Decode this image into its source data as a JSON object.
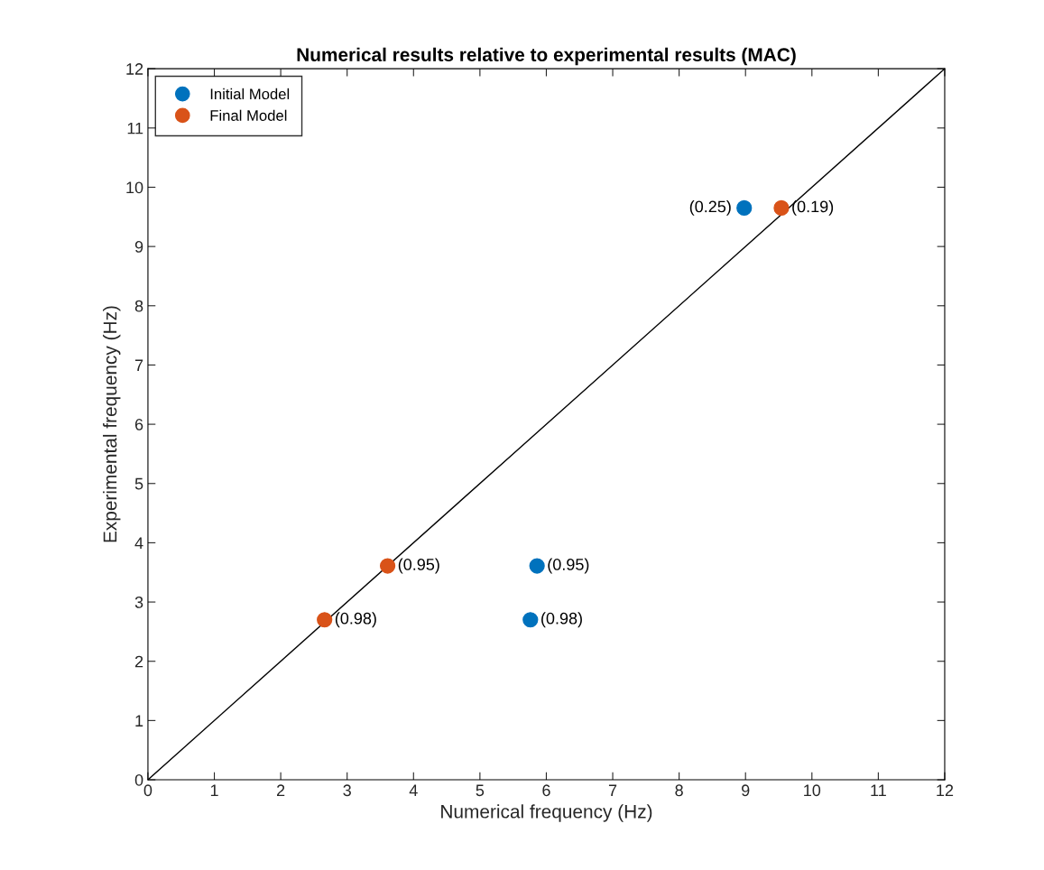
{
  "chart_data": {
    "type": "scatter",
    "title": "Numerical results relative to experimental results (MAC)",
    "xlabel": "Numerical frequency (Hz)",
    "ylabel": "Experimental frequency (Hz)",
    "xlim": [
      0,
      12
    ],
    "ylim": [
      0,
      12
    ],
    "xticks": [
      0,
      1,
      2,
      3,
      4,
      5,
      6,
      7,
      8,
      9,
      10,
      11,
      12
    ],
    "yticks": [
      0,
      1,
      2,
      3,
      4,
      5,
      6,
      7,
      8,
      9,
      10,
      11,
      12
    ],
    "grid": false,
    "legend": "top left",
    "marker": "circle",
    "series": [
      {
        "type": "line",
        "color": "#000000",
        "x": [
          0,
          12
        ],
        "values": [
          0,
          12
        ],
        "marker": "none"
      },
      {
        "name": "Initial Model",
        "color": "#0072bd",
        "x": [
          8.98,
          5.86,
          5.76
        ],
        "values": [
          9.65,
          3.61,
          2.7
        ]
      },
      {
        "name": "Final Model",
        "color": "#d95319",
        "x": [
          9.54,
          3.61,
          2.66
        ],
        "values": [
          9.65,
          3.61,
          2.7
        ]
      }
    ],
    "annotations": [
      {
        "text": "(0.25)",
        "x": 8.98,
        "y": 9.65
      },
      {
        "text": "(0.95)",
        "x": 5.86,
        "y": 3.61
      },
      {
        "text": "(0.98)",
        "x": 5.76,
        "y": 2.7
      },
      {
        "text": "(0.19)",
        "x": 9.54,
        "y": 9.65
      },
      {
        "text": "(0.95)",
        "x": 3.61,
        "y": 3.61
      },
      {
        "text": "(0.98)",
        "x": 2.66,
        "y": 2.7
      }
    ]
  }
}
